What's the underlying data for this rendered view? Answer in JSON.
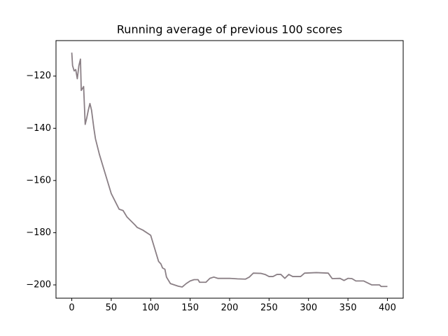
{
  "chart_data": {
    "type": "line",
    "title": "Running average of previous 100 scores",
    "x": [
      0,
      1,
      3,
      5,
      7,
      9,
      11,
      12,
      15,
      17,
      19,
      21,
      23,
      25,
      28,
      30,
      35,
      40,
      45,
      50,
      55,
      60,
      65,
      70,
      80,
      83,
      90,
      100,
      105,
      110,
      113,
      115,
      118,
      120,
      125,
      130,
      135,
      140,
      145,
      150,
      155,
      160,
      162,
      170,
      175,
      180,
      185,
      200,
      210,
      220,
      225,
      230,
      240,
      245,
      250,
      255,
      260,
      265,
      270,
      275,
      280,
      290,
      295,
      310,
      325,
      330,
      340,
      345,
      350,
      355,
      360,
      370,
      380,
      390,
      392,
      400
    ],
    "series": [
      {
        "color": "#8a7f85",
        "values": [
          -111,
          -116,
          -118,
          -117.5,
          -121,
          -116,
          -113.5,
          -125.5,
          -124,
          -138.5,
          -136,
          -133,
          -130.5,
          -133,
          -140,
          -144,
          -150,
          -155,
          -160,
          -165,
          -168,
          -171,
          -171.5,
          -174,
          -177,
          -178,
          -179,
          -181,
          -186,
          -191,
          -192,
          -193.5,
          -194,
          -197,
          -199.5,
          -200,
          -200.5,
          -200.8,
          -199.5,
          -198.5,
          -198,
          -198,
          -199,
          -199,
          -197.5,
          -197,
          -197.5,
          -197.5,
          -197.7,
          -197.8,
          -197,
          -195.5,
          -195.6,
          -196,
          -196.8,
          -196.8,
          -196,
          -196,
          -197.5,
          -196,
          -196.8,
          -196.8,
          -195.5,
          -195.3,
          -195.5,
          -197.6,
          -197.5,
          -198.3,
          -197.5,
          -197.6,
          -198.5,
          -198.5,
          -200,
          -200,
          -200.6,
          -200.6
        ]
      }
    ],
    "xlim": [
      -20,
      420
    ],
    "ylim": [
      -205.1,
      -106.4
    ],
    "xticks": [
      0,
      50,
      100,
      150,
      200,
      250,
      300,
      350,
      400
    ],
    "yticks": [
      {
        "value": -200,
        "label": "−200"
      },
      {
        "value": -180,
        "label": "−180"
      },
      {
        "value": -160,
        "label": "−160"
      },
      {
        "value": -140,
        "label": "−140"
      },
      {
        "value": -120,
        "label": "−120"
      }
    ]
  }
}
